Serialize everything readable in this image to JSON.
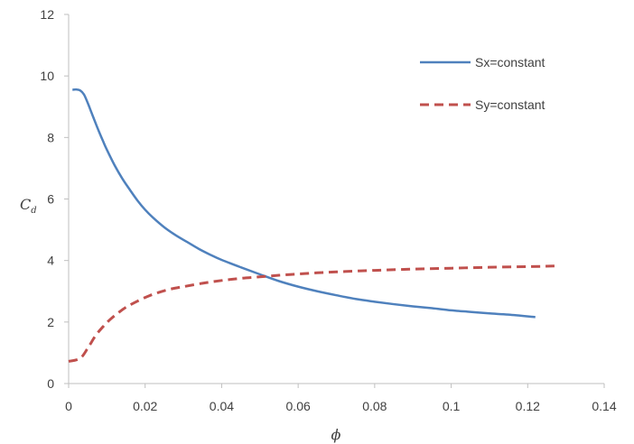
{
  "chart_data": {
    "type": "line",
    "title": "",
    "xlabel": "ϕ",
    "ylabel_main": "C",
    "ylabel_sub": "d",
    "xlim": [
      0,
      0.14
    ],
    "ylim": [
      0,
      12
    ],
    "x_ticks": [
      0,
      0.02,
      0.04,
      0.06,
      0.08,
      0.1,
      0.12,
      0.14
    ],
    "x_tick_labels": [
      "0",
      "0.02",
      "0.04",
      "0.06",
      "0.08",
      "0.1",
      "0.12",
      "0.14"
    ],
    "y_ticks": [
      0,
      2,
      4,
      6,
      8,
      10,
      12
    ],
    "y_tick_labels": [
      "0",
      "2",
      "4",
      "6",
      "8",
      "10",
      "12"
    ],
    "grid": false,
    "legend_position": "top-right",
    "series": [
      {
        "name": "Sx=constant",
        "color": "#4f81bd",
        "dash": "solid",
        "x": [
          0.001,
          0.002,
          0.003,
          0.004,
          0.005,
          0.006,
          0.007,
          0.008,
          0.009,
          0.01,
          0.012,
          0.014,
          0.016,
          0.018,
          0.02,
          0.022,
          0.025,
          0.028,
          0.031,
          0.034,
          0.037,
          0.04,
          0.045,
          0.05,
          0.055,
          0.06,
          0.065,
          0.07,
          0.075,
          0.08,
          0.085,
          0.09,
          0.095,
          0.1,
          0.105,
          0.11,
          0.115,
          0.122
        ],
        "y": [
          9.55,
          9.56,
          9.53,
          9.4,
          9.12,
          8.8,
          8.48,
          8.17,
          7.88,
          7.6,
          7.1,
          6.67,
          6.3,
          5.95,
          5.65,
          5.4,
          5.08,
          4.82,
          4.6,
          4.38,
          4.19,
          4.02,
          3.78,
          3.55,
          3.33,
          3.15,
          3.0,
          2.87,
          2.75,
          2.66,
          2.58,
          2.51,
          2.45,
          2.38,
          2.33,
          2.28,
          2.24,
          2.16
        ]
      },
      {
        "name": "Sy=constant",
        "color": "#c0504d",
        "dash": "dashed",
        "x": [
          0.0,
          0.003,
          0.005,
          0.007,
          0.009,
          0.011,
          0.013,
          0.015,
          0.018,
          0.021,
          0.024,
          0.027,
          0.03,
          0.035,
          0.04,
          0.045,
          0.05,
          0.055,
          0.06,
          0.065,
          0.07,
          0.08,
          0.09,
          0.1,
          0.11,
          0.12,
          0.127
        ],
        "y": [
          0.72,
          0.82,
          1.15,
          1.55,
          1.85,
          2.1,
          2.3,
          2.48,
          2.68,
          2.85,
          2.98,
          3.08,
          3.15,
          3.26,
          3.35,
          3.42,
          3.47,
          3.52,
          3.56,
          3.6,
          3.63,
          3.68,
          3.72,
          3.75,
          3.78,
          3.8,
          3.82
        ]
      }
    ]
  }
}
